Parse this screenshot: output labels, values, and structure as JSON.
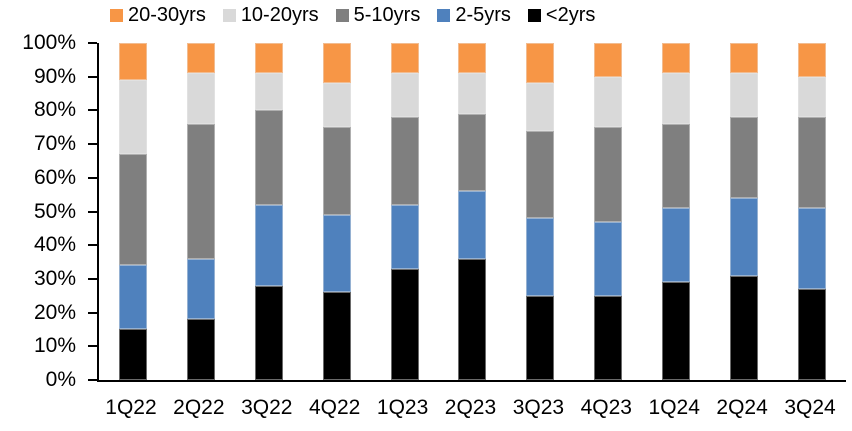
{
  "chart_data": {
    "type": "bar",
    "variant": "stacked-100-percent",
    "title": "",
    "categories": [
      "1Q22",
      "2Q22",
      "3Q22",
      "4Q22",
      "1Q23",
      "2Q23",
      "3Q23",
      "4Q23",
      "1Q24",
      "2Q24",
      "3Q24"
    ],
    "series": [
      {
        "name": "<2yrs",
        "color": "#000000",
        "values": [
          15,
          18,
          28,
          26,
          33,
          36,
          25,
          25,
          29,
          31,
          27
        ]
      },
      {
        "name": "2-5yrs",
        "color": "#4F81BD",
        "values": [
          19,
          18,
          24,
          23,
          19,
          20,
          23,
          22,
          22,
          23,
          24
        ]
      },
      {
        "name": "5-10yrs",
        "color": "#7F7F7F",
        "values": [
          33,
          40,
          28,
          26,
          26,
          23,
          26,
          28,
          25,
          24,
          27
        ]
      },
      {
        "name": "10-20yrs",
        "color": "#D9D9D9",
        "values": [
          22,
          15,
          11,
          13,
          13,
          12,
          14,
          15,
          15,
          13,
          12
        ]
      },
      {
        "name": "20-30yrs",
        "color": "#F79646",
        "values": [
          11,
          9,
          9,
          12,
          9,
          9,
          12,
          10,
          9,
          9,
          10
        ]
      }
    ],
    "legend_order": [
      "20-30yrs",
      "10-20yrs",
      "5-10yrs",
      "2-5yrs",
      "<2yrs"
    ],
    "legend_position": "top",
    "xlabel": "",
    "ylabel": "",
    "y_axis": {
      "min": 0,
      "max": 100,
      "step": 10,
      "format": "percent",
      "tick_labels": [
        "0%",
        "10%",
        "20%",
        "30%",
        "40%",
        "50%",
        "60%",
        "70%",
        "80%",
        "90%",
        "100%"
      ]
    },
    "grid": false,
    "axis_color": "#000000",
    "background_color": "#FFFFFF"
  }
}
